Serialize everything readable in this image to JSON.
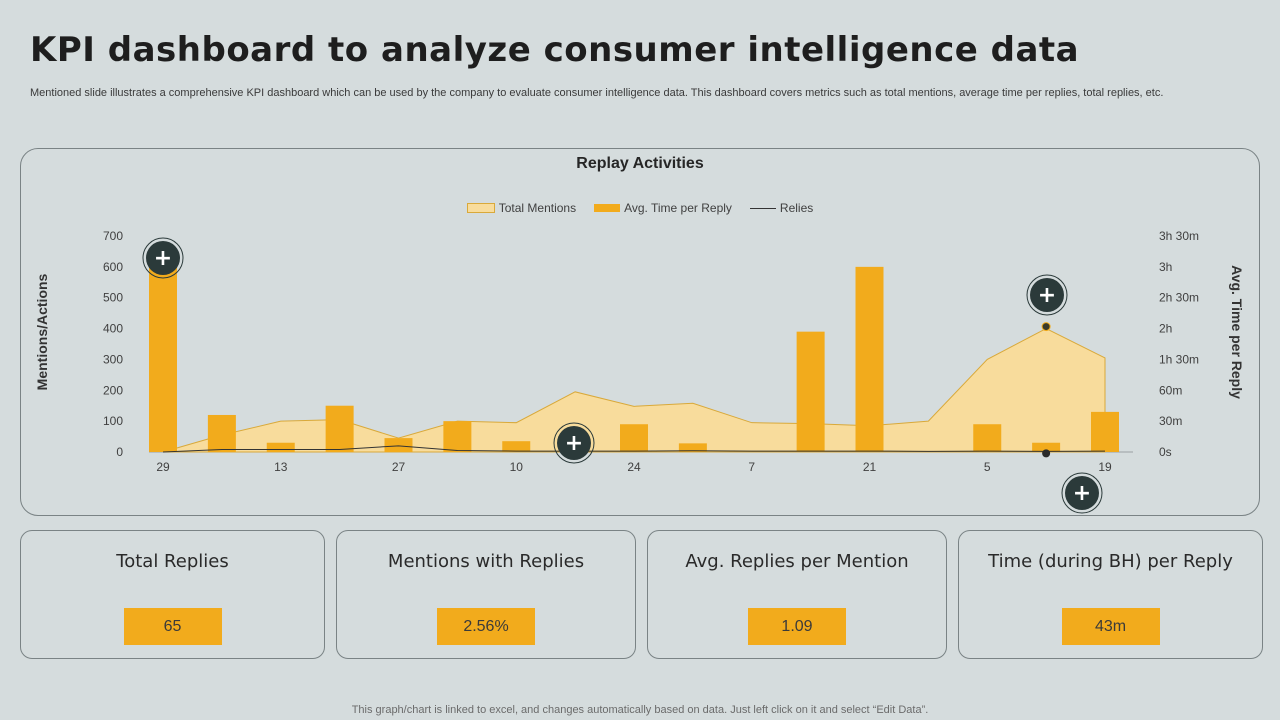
{
  "header": {
    "title": "KPI dashboard to analyze consumer intelligence data",
    "subtitle": "Mentioned slide illustrates a comprehensive KPI dashboard which can be used by the company to  evaluate consumer intelligence data. This dashboard covers metrics such as total mentions, average time per replies, total replies, etc."
  },
  "colors": {
    "bar": "#f2ab1c",
    "area_fill": "#f8dc9c",
    "area_stroke": "#d9a93a",
    "line": "#333333",
    "plus_button": "#2b3a3a"
  },
  "chart_data": {
    "type": "bar",
    "title": "Replay Activities",
    "ylabel": "Mentions/Actions",
    "y2label": "Avg. Time per Reply",
    "ylim": [
      0,
      700
    ],
    "yticks": [
      "0",
      "100",
      "200",
      "300",
      "400",
      "500",
      "600",
      "700"
    ],
    "y2ticks": [
      "0s",
      "30m",
      "60m",
      "1h 30m",
      "2h",
      "2h 30m",
      "3h",
      "3h 30m"
    ],
    "x_labels": [
      "29",
      "",
      "13",
      "",
      "27",
      "",
      "10",
      "",
      "24",
      "",
      "7",
      "",
      "21",
      "",
      "5",
      "",
      "19"
    ],
    "legend_position": "top",
    "series": [
      {
        "name": "Total Mentions",
        "kind": "area",
        "values": [
          0,
          55,
          100,
          105,
          45,
          100,
          95,
          195,
          148,
          158,
          95,
          92,
          85,
          100,
          300,
          400,
          305
        ]
      },
      {
        "name": "Avg. Time per Reply",
        "kind": "bar",
        "values": [
          600,
          120,
          30,
          150,
          45,
          100,
          35,
          0,
          90,
          28,
          0,
          390,
          600,
          0,
          90,
          30,
          130
        ]
      },
      {
        "name": "Relies",
        "kind": "line",
        "values": [
          0,
          8,
          8,
          8,
          20,
          5,
          3,
          3,
          3,
          4,
          3,
          3,
          3,
          2,
          3,
          2,
          3
        ]
      }
    ]
  },
  "kpis": [
    {
      "label": "Total Replies",
      "value": "65"
    },
    {
      "label": "Mentions with Replies",
      "value": "2.56%"
    },
    {
      "label": "Avg. Replies per Mention",
      "value": "1.09"
    },
    {
      "label": "Time (during BH) per Reply",
      "value": "43m"
    }
  ],
  "plus_buttons": {
    "symbol": "+"
  },
  "footer": {
    "note": "This graph/chart is linked to excel,  and changes automatically based on data. Just left click on it and select “Edit Data”."
  }
}
